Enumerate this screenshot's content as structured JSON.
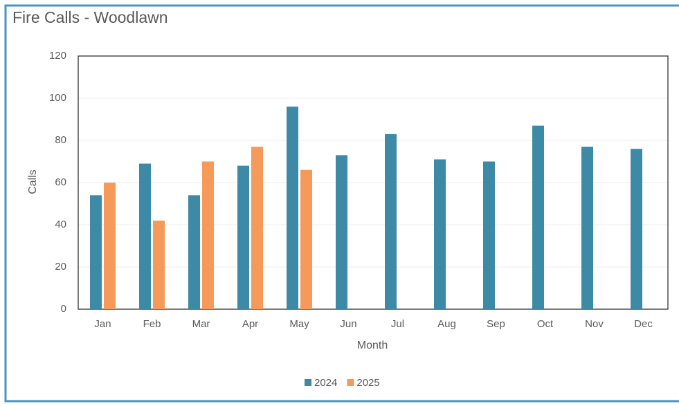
{
  "chart_data": {
    "type": "bar",
    "title": "Fire Calls - Woodlawn",
    "x_label": "Month",
    "y_label": "Calls",
    "categories": [
      "Jan",
      "Feb",
      "Mar",
      "Apr",
      "May",
      "Jun",
      "Jul",
      "Aug",
      "Sep",
      "Oct",
      "Nov",
      "Dec"
    ],
    "series": [
      {
        "name": "2024",
        "color": "#3d8aa6",
        "values": [
          54,
          69,
          54,
          68,
          96,
          73,
          83,
          71,
          70,
          87,
          77,
          76
        ]
      },
      {
        "name": "2025",
        "color": "#f59a5b",
        "values": [
          60,
          42,
          70,
          77,
          66,
          null,
          null,
          null,
          null,
          null,
          null,
          null
        ]
      }
    ],
    "ylim": [
      0,
      120
    ],
    "yticks": [
      0,
      20,
      40,
      60,
      80,
      100,
      120
    ],
    "grid": true,
    "legend": "bottom"
  }
}
